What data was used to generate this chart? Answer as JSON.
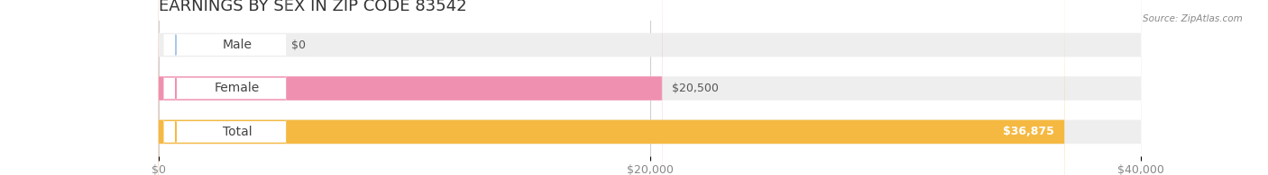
{
  "title": "EARNINGS BY SEX IN ZIP CODE 83542",
  "source": "Source: ZipAtlas.com",
  "categories": [
    "Male",
    "Female",
    "Total"
  ],
  "values": [
    0,
    20500,
    36875
  ],
  "bar_colors": [
    "#a8c8e8",
    "#f090b0",
    "#f5b942"
  ],
  "bar_bg_color": "#eeeeee",
  "label_bg_color": "#ffffff",
  "xlim": [
    0,
    40000
  ],
  "xticks": [
    0,
    20000,
    40000
  ],
  "xtick_labels": [
    "$0",
    "$20,000",
    "$40,000"
  ],
  "value_labels": [
    "$0",
    "$20,500",
    "$36,875"
  ],
  "bar_height": 0.55,
  "background_color": "#ffffff",
  "title_fontsize": 13,
  "tick_fontsize": 9,
  "label_fontsize": 10,
  "value_fontsize": 9
}
